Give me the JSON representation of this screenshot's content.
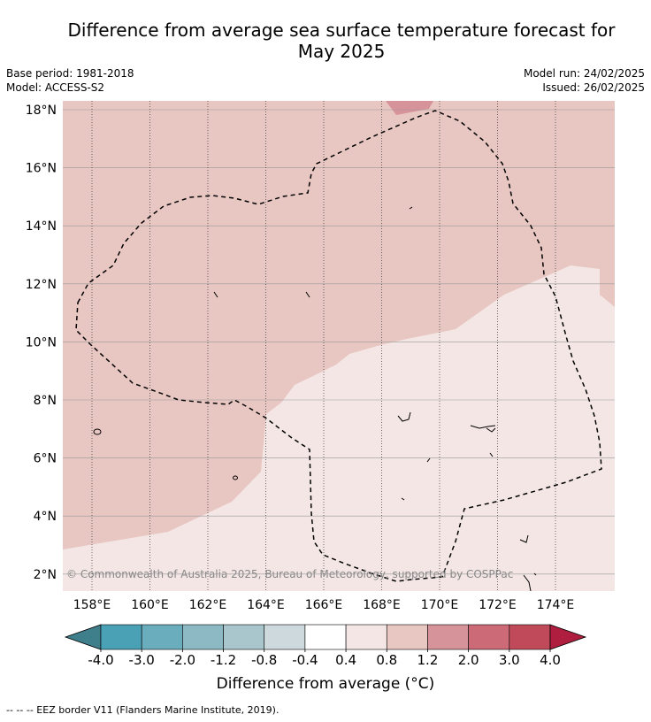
{
  "header": {
    "title_line1": "Difference from average sea surface temperature forecast for",
    "title_line2": "May 2025",
    "base_period": "Base period: 1981-2018",
    "model": "Model: ACCESS-S2",
    "model_run": "Model run: 24/02/2025",
    "issued": "Issued: 26/02/2025"
  },
  "map": {
    "lat_ticks": [
      "18°N",
      "16°N",
      "14°N",
      "12°N",
      "10°N",
      "8°N",
      "6°N",
      "4°N",
      "2°N"
    ],
    "lon_ticks": [
      "158°E",
      "160°E",
      "162°E",
      "164°E",
      "166°E",
      "168°E",
      "170°E",
      "172°E",
      "174°E"
    ],
    "copyright": "© Commonwealth of Australia 2025, Bureau of Meteorology, supported by COSPPac",
    "region_colors": {
      "anomaly_0_4_to_0_8": "#f3e6e4",
      "anomaly_0_8_to_1_2": "#e8c6c1",
      "anomaly_1_2_to_2_0": "#d7939a"
    }
  },
  "colorbar": {
    "colors": [
      "#3f7f8b",
      "#4aa0b5",
      "#6aaebd",
      "#8cb9c4",
      "#a8c6cb",
      "#cdd9dc",
      "#ffffff",
      "#f3e6e4",
      "#e8c6c1",
      "#d7939a",
      "#cc6a77",
      "#c04a59",
      "#b01e3f"
    ],
    "tick_labels": [
      "-4.0",
      "-3.0",
      "-2.0",
      "-1.2",
      "-0.8",
      "-0.4",
      "0.4",
      "0.8",
      "1.2",
      "2.0",
      "3.0",
      "4.0"
    ],
    "label": "Difference from average (°C)"
  },
  "footer": {
    "legend_text": "--  --  -- EEZ border V11 (Flanders Marine Institute, 2019)."
  }
}
